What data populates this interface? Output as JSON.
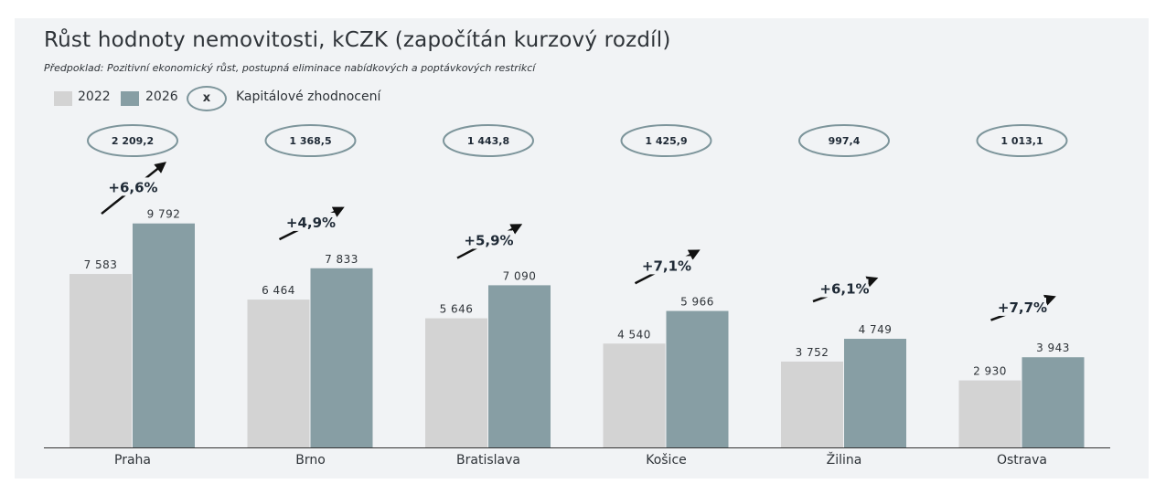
{
  "title": "Růst hodnoty nemovitosti, kCZK (započítán kurzový rozdíl)",
  "subtitle": "Předpoklad: Pozitivní ekonomický růst, postupná eliminace nabídkových a poptávkových restrikcí",
  "legend": {
    "items": [
      {
        "label": "2022",
        "color": "#d3d3d3"
      },
      {
        "label": "2026",
        "color": "#879ea4"
      }
    ],
    "oval_symbol": "x",
    "oval_label": "Kapitálové zhodnocení"
  },
  "colors": {
    "bar_2022": "#d3d3d3",
    "bar_2026": "#879ea4",
    "oval": "#7d959b",
    "arrow": "#111111"
  },
  "chart_data": {
    "type": "bar",
    "categories": [
      "Praha",
      "Brno",
      "Bratislava",
      "Košice",
      "Žilina",
      "Ostrava"
    ],
    "series": [
      {
        "name": "2022",
        "values": [
          7583,
          6464,
          5646,
          4540,
          3752,
          2930
        ],
        "labels": [
          "7 583",
          "6 464",
          "5 646",
          "4 540",
          "3 752",
          "2 930"
        ]
      },
      {
        "name": "2026",
        "values": [
          9792,
          7833,
          7090,
          5966,
          4749,
          3943
        ],
        "labels": [
          "9 792",
          "7 833",
          "7 090",
          "5 966",
          "4 749",
          "3 943"
        ]
      }
    ],
    "growth_labels": [
      "+6,6%",
      "+4,9%",
      "+5,9%",
      "+7,1%",
      "+6,1%",
      "+7,7%"
    ],
    "capital_appreciation": [
      "2 209,2",
      "1 368,5",
      "1 443,8",
      "1 425,9",
      "997,4",
      "1 013,1"
    ],
    "ylim": [
      0,
      10000
    ]
  }
}
